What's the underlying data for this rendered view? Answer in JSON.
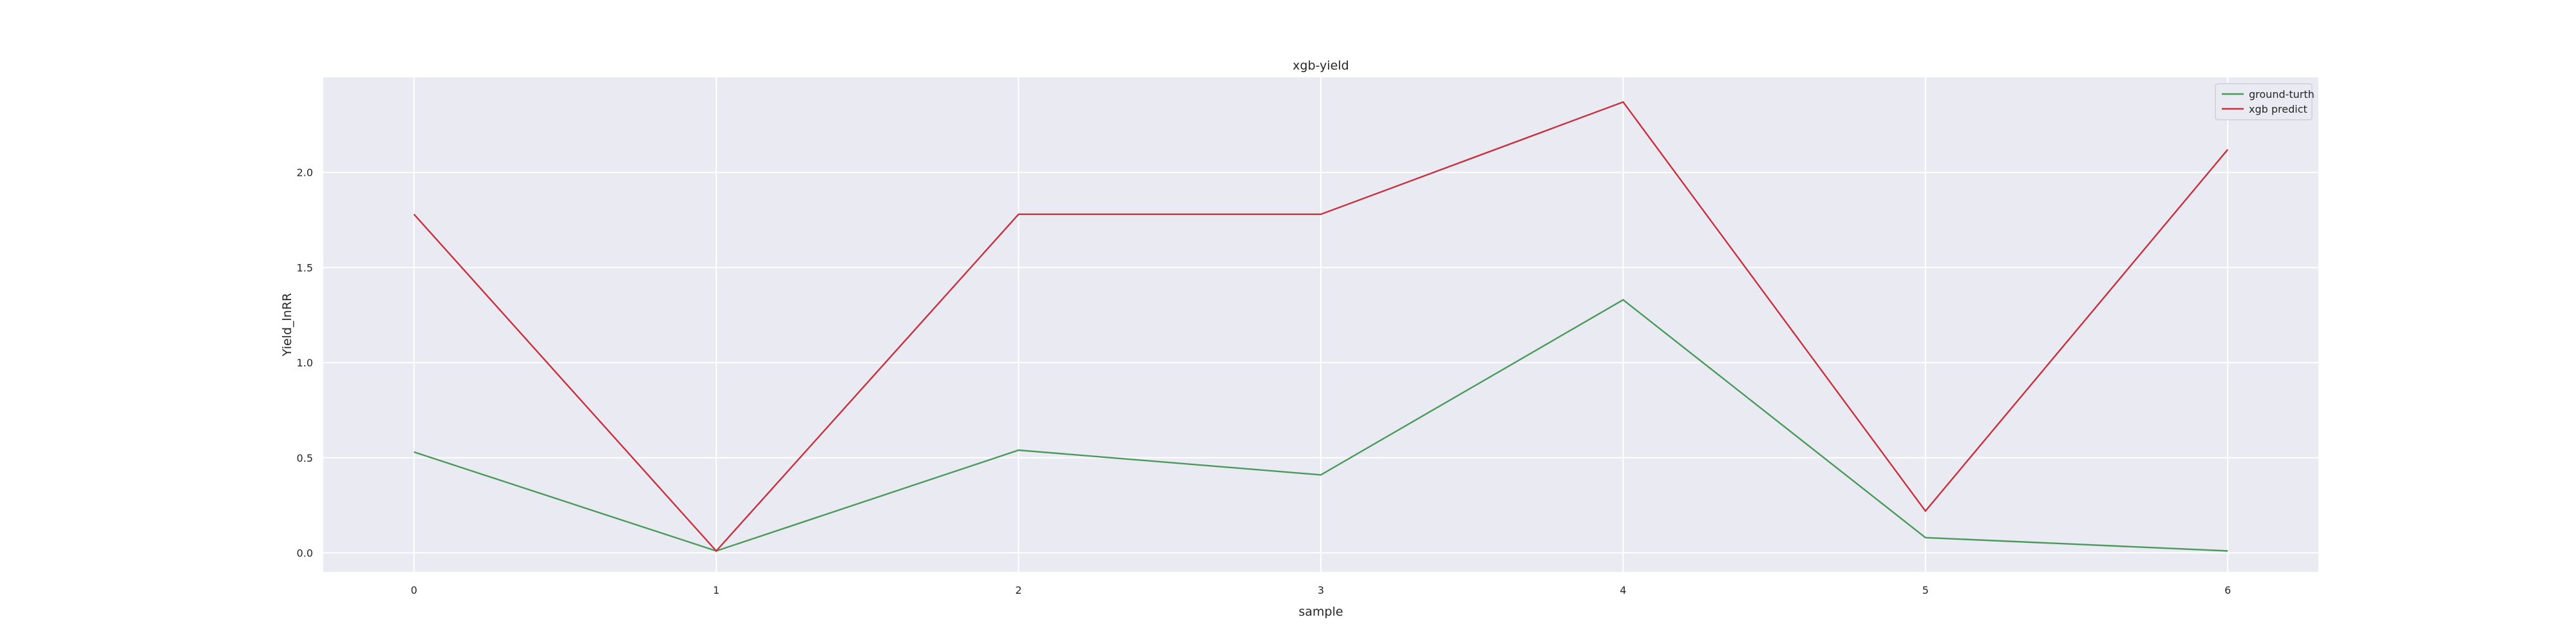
{
  "chart_data": {
    "type": "line",
    "title": "xgb-yield",
    "xlabel": "sample",
    "ylabel": "Yield_lnRR",
    "x": [
      0,
      1,
      2,
      3,
      4,
      5,
      6
    ],
    "xticks": [
      "0",
      "1",
      "2",
      "3",
      "4",
      "5",
      "6"
    ],
    "yticks": [
      "0.0",
      "0.5",
      "1.0",
      "1.5",
      "2.0"
    ],
    "xlim": [
      -0.3,
      6.3
    ],
    "ylim": [
      -0.1,
      2.5
    ],
    "grid": true,
    "legend_position": "top-right",
    "series": [
      {
        "name": "ground-turth",
        "color": "#4a9a5c",
        "values": [
          0.53,
          0.01,
          0.54,
          0.41,
          1.33,
          0.08,
          0.01
        ]
      },
      {
        "name": "xgb predict",
        "color": "#c9303e",
        "values": [
          1.78,
          0.01,
          1.78,
          1.78,
          2.37,
          0.22,
          2.12
        ]
      }
    ]
  },
  "style": {
    "plot_background": "#eaeaf2",
    "grid_color": "#ffffff"
  }
}
